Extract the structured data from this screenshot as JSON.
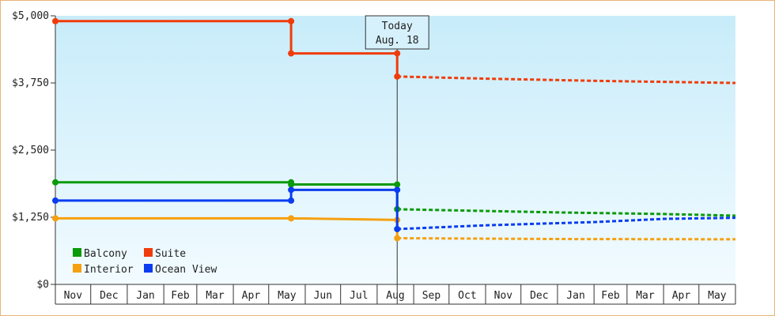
{
  "chart_data": {
    "type": "line",
    "step": true,
    "x_unit": "month",
    "xlim": [
      "2020-11-01",
      "2022-06-01"
    ],
    "x_tick_labels": [
      "Nov",
      "Dec",
      "Jan",
      "Feb",
      "Mar",
      "Apr",
      "May",
      "Jun",
      "Jul",
      "Aug",
      "Sep",
      "Oct",
      "Nov",
      "Dec",
      "Jan",
      "Feb",
      "Mar",
      "Apr",
      "May"
    ],
    "x_ticks": [
      "2020-11-01",
      "2020-12-01",
      "2021-01-01",
      "2021-02-01",
      "2021-03-01",
      "2021-04-01",
      "2021-05-01",
      "2021-06-01",
      "2021-07-01",
      "2021-08-01",
      "2021-09-01",
      "2021-10-01",
      "2021-11-01",
      "2021-12-01",
      "2022-01-01",
      "2022-02-01",
      "2022-03-01",
      "2022-04-01",
      "2022-05-01",
      "2022-06-01"
    ],
    "y_ticks": [
      0,
      1250,
      2500,
      3750,
      5000
    ],
    "y_tick_labels": [
      "$0",
      "$1,250",
      "$2,500",
      "$3,750",
      "$5,000"
    ],
    "ylim": [
      0,
      5000
    ],
    "today": {
      "date": "2021-08-18",
      "label_line1": "Today",
      "label_line2": "Aug. 18"
    },
    "legend_position": "bottom-left",
    "series": [
      {
        "name": "Balcony",
        "color": "#0a9a0a",
        "actual": [
          [
            "2020-11-01",
            1900
          ],
          [
            "2021-05-20",
            1900
          ],
          [
            "2021-05-20",
            1860
          ],
          [
            "2021-08-18",
            1860
          ],
          [
            "2021-08-18",
            1400
          ]
        ],
        "forecast": [
          [
            "2021-08-18",
            1400
          ],
          [
            "2021-10-01",
            1380
          ],
          [
            "2022-01-01",
            1340
          ],
          [
            "2022-04-01",
            1310
          ],
          [
            "2022-06-01",
            1280
          ]
        ]
      },
      {
        "name": "Suite",
        "color": "#f03c0a",
        "actual": [
          [
            "2020-11-01",
            4900
          ],
          [
            "2021-05-20",
            4900
          ],
          [
            "2021-05-20",
            4300
          ],
          [
            "2021-08-18",
            4300
          ],
          [
            "2021-08-18",
            3870
          ]
        ],
        "forecast": [
          [
            "2021-08-18",
            3870
          ],
          [
            "2021-11-01",
            3830
          ],
          [
            "2022-02-01",
            3790
          ],
          [
            "2022-06-01",
            3750
          ]
        ]
      },
      {
        "name": "Interior",
        "color": "#f5a010",
        "actual": [
          [
            "2020-11-01",
            1230
          ],
          [
            "2021-05-20",
            1230
          ],
          [
            "2021-08-18",
            1200
          ],
          [
            "2021-08-18",
            860
          ]
        ],
        "forecast": [
          [
            "2021-08-18",
            860
          ],
          [
            "2022-01-01",
            845
          ],
          [
            "2022-06-01",
            840
          ]
        ]
      },
      {
        "name": "Ocean View",
        "color": "#0a3cf0",
        "actual": [
          [
            "2020-11-01",
            1560
          ],
          [
            "2021-05-20",
            1560
          ],
          [
            "2021-05-20",
            1760
          ],
          [
            "2021-08-18",
            1760
          ],
          [
            "2021-08-18",
            1030
          ]
        ],
        "forecast": [
          [
            "2021-08-18",
            1030
          ],
          [
            "2021-11-01",
            1100
          ],
          [
            "2022-02-01",
            1160
          ],
          [
            "2022-04-01",
            1220
          ],
          [
            "2022-06-01",
            1240
          ]
        ]
      }
    ]
  }
}
